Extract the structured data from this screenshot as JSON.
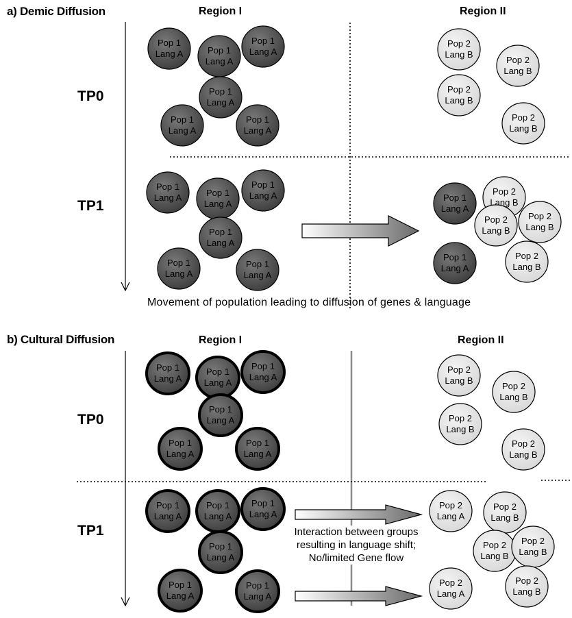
{
  "panel_a": {
    "title": "a) Demic Diffusion",
    "region_1": "Region I",
    "region_2": "Region II",
    "tp0": "TP0",
    "tp1": "TP1",
    "caption": "Movement of population leading to diffusion of genes & language"
  },
  "panel_b": {
    "title": "b) Cultural Diffusion",
    "region_1": "Region I",
    "region_2": "Region II",
    "tp0": "TP0",
    "tp1": "TP1",
    "interaction_text": "Interaction between groups resulting in language shift; No/limited Gene flow"
  },
  "labels": {
    "pop1": "Pop 1",
    "pop2": "Pop 2",
    "lang_a": "Lang A",
    "lang_b": "Lang B"
  },
  "colors": {
    "pop1_fill": "#555555",
    "pop2_fill": "#e6e6e6",
    "outline": "#000000",
    "arrow_light": "#ffffff",
    "arrow_dark": "#6a6a6a",
    "divider": "#888888"
  }
}
